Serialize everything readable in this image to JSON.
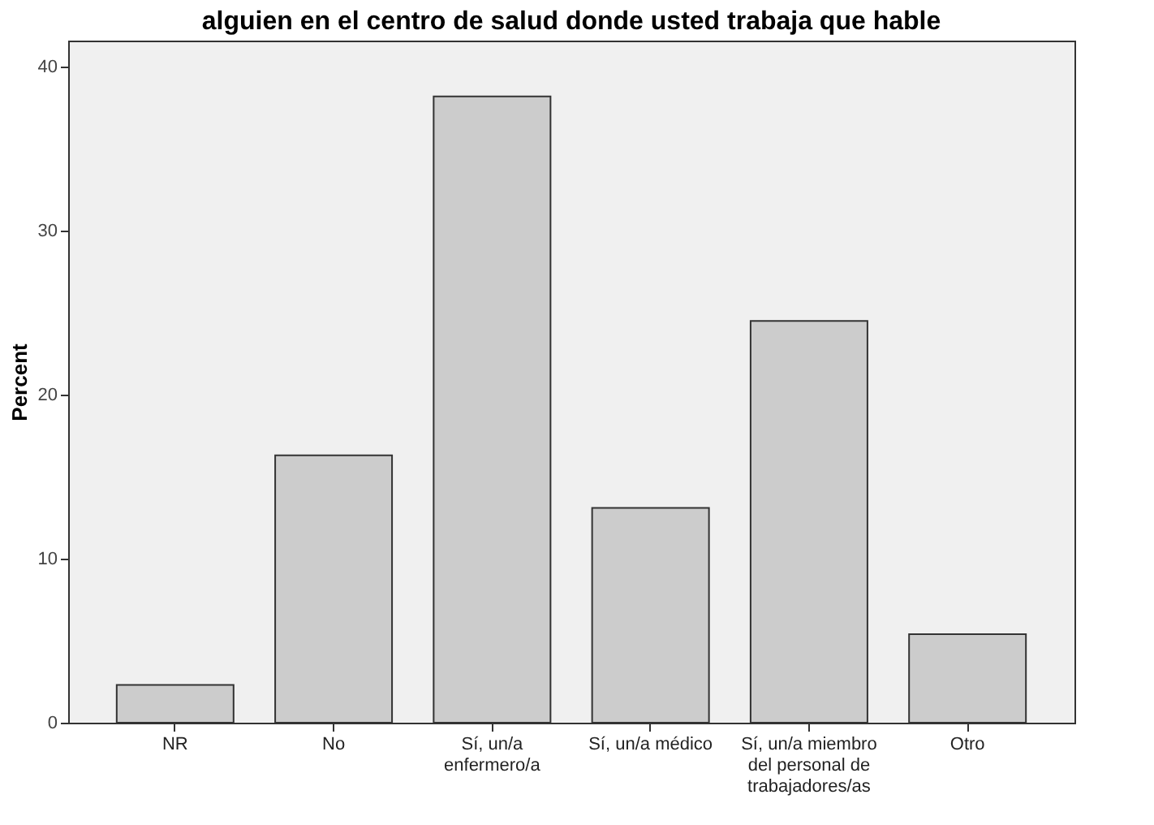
{
  "chart_data": {
    "type": "bar",
    "title": "alguien en el centro de salud donde usted trabaja que hable",
    "ylabel": "Percent",
    "categories": [
      "NR",
      "No",
      "Sí, un/a enfermero/a",
      "Sí, un/a médico",
      "Sí, un/a miembro del personal de trabajadores/as",
      "Otro"
    ],
    "values": [
      2.3,
      16.3,
      38.2,
      13.1,
      24.5,
      5.4
    ],
    "color": "#cccccc",
    "ylim": [
      0,
      41.6
    ],
    "yticks": [
      0,
      10,
      20,
      30,
      40
    ],
    "grid": false
  }
}
